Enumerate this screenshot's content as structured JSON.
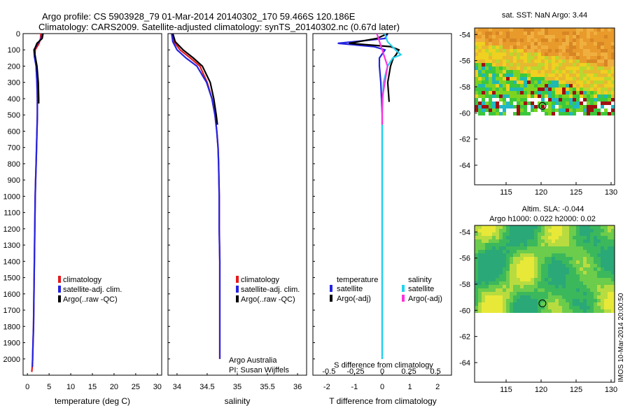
{
  "header": {
    "line1": "Argo profile: CS 5903928_79 01-Mar-2014 20140302_170 59.466S 120.186E",
    "line2": "Climatology: CARS2009. Satellite-adjusted climatology: synTS_20140302.nc (0.67d later)"
  },
  "colors": {
    "climatology": "#e31a1c",
    "satellite": "#2424e0",
    "argo": "#000000",
    "sal_satellite": "#22d3ee",
    "sal_argo": "#ff33dd"
  },
  "chart_data": [
    {
      "type": "line",
      "name": "temperature-panel",
      "xlabel": "temperature (deg C)",
      "ylabel": "",
      "xlim": [
        -1,
        31
      ],
      "ylim": [
        2100,
        0
      ],
      "xticks": [
        0,
        5,
        10,
        15,
        20,
        25,
        30
      ],
      "yticks": [
        0,
        100,
        200,
        300,
        400,
        500,
        600,
        700,
        800,
        900,
        1000,
        1100,
        1200,
        1300,
        1400,
        1500,
        1600,
        1700,
        1800,
        1900,
        2000
      ],
      "legend": [
        "climatology",
        "satellite-adj. clim.",
        "Argo(..raw -QC)"
      ],
      "series": [
        {
          "name": "climatology",
          "x": [
            3.1,
            3.0,
            2.7,
            1.8,
            1.7,
            2.0,
            2.2,
            2.3,
            2.3,
            2.2,
            2.1,
            2.0,
            1.9,
            1.8,
            1.7,
            1.6,
            1.5,
            1.4,
            1.3,
            1.2,
            1.1,
            1.0
          ],
          "y": [
            0,
            30,
            60,
            100,
            140,
            200,
            300,
            400,
            500,
            600,
            700,
            800,
            900,
            1000,
            1200,
            1400,
            1600,
            1800,
            1900,
            2000,
            2050,
            2080
          ]
        },
        {
          "name": "satellite-adj. clim.",
          "x": [
            3.4,
            3.2,
            2.4,
            1.5,
            1.6,
            2.0,
            2.2,
            2.3,
            2.3,
            2.2,
            2.1,
            2.0,
            1.9,
            1.8,
            1.7,
            1.6,
            1.5,
            1.4,
            1.3,
            1.2,
            1.15
          ],
          "y": [
            0,
            30,
            60,
            100,
            140,
            200,
            300,
            400,
            500,
            600,
            700,
            800,
            900,
            1000,
            1200,
            1400,
            1600,
            1800,
            1900,
            2000,
            2050
          ]
        },
        {
          "name": "Argo(..raw -QC)",
          "x": [
            3.6,
            3.4,
            2.2,
            1.6,
            1.8,
            2.2,
            2.5,
            2.6,
            2.6
          ],
          "y": [
            0,
            30,
            60,
            100,
            140,
            200,
            300,
            400,
            430
          ]
        }
      ]
    },
    {
      "type": "line",
      "name": "salinity-panel",
      "xlabel": "salinity",
      "ylabel": "",
      "xlim": [
        33.85,
        36.15
      ],
      "ylim": [
        2100,
        0
      ],
      "xticks": [
        34,
        34.5,
        35,
        35.5,
        36
      ],
      "legend": [
        "climatology",
        "satellite-adj. clim.",
        "Argo(..raw -QC)"
      ],
      "annotations": [
        "Argo Australia",
        "PI: Susan Wijffels"
      ],
      "series": [
        {
          "name": "climatology",
          "x": [
            33.92,
            33.95,
            34.05,
            34.22,
            34.38,
            34.5,
            34.58,
            34.63,
            34.66,
            34.68,
            34.69,
            34.7,
            34.7,
            34.71,
            34.71,
            34.71,
            34.71
          ],
          "y": [
            0,
            50,
            100,
            150,
            200,
            300,
            400,
            500,
            600,
            700,
            800,
            1000,
            1200,
            1400,
            1600,
            1800,
            2000
          ]
        },
        {
          "name": "satellite-adj. clim.",
          "x": [
            33.91,
            33.93,
            34.0,
            34.15,
            34.33,
            34.49,
            34.58,
            34.63,
            34.66,
            34.68,
            34.69,
            34.7,
            34.7,
            34.71,
            34.71,
            34.71,
            34.71
          ],
          "y": [
            0,
            50,
            100,
            150,
            200,
            300,
            400,
            500,
            600,
            700,
            800,
            1000,
            1200,
            1400,
            1600,
            1800,
            2000
          ]
        },
        {
          "name": "Argo(..raw -QC)",
          "x": [
            33.93,
            33.97,
            34.1,
            34.27,
            34.42,
            34.55,
            34.61,
            34.65,
            34.67
          ],
          "y": [
            0,
            50,
            100,
            150,
            200,
            300,
            400,
            500,
            560
          ]
        }
      ]
    },
    {
      "type": "line",
      "name": "difference-panel",
      "xlabel": "T difference from climatology",
      "ylabel": "",
      "secondary_xlabel": "S difference from climatology",
      "xlim": [
        -2.5,
        2.5
      ],
      "ylim": [
        2100,
        0
      ],
      "xticks": [
        -2,
        -1,
        0,
        1,
        2
      ],
      "secondary_xticks": [
        "-0.5",
        "-0.25",
        "0",
        "0.25",
        "0.5"
      ],
      "legend": [
        "temperature",
        "satellite",
        "Argo(-adj)",
        "salinity",
        "satellite",
        "Argo(-adj)"
      ],
      "series": [
        {
          "name": "temperature satellite",
          "x": [
            0.2,
            0.1,
            -1.6,
            -0.3,
            0.1,
            -0.1,
            -0.1,
            -0.05,
            0,
            0,
            0,
            0
          ],
          "y": [
            0,
            30,
            60,
            80,
            100,
            150,
            200,
            300,
            500,
            1000,
            1500,
            2000
          ]
        },
        {
          "name": "temperature Argo(-adj)",
          "x": [
            0.2,
            -0.2,
            -1.2,
            0.3,
            0.6,
            0.5,
            0.4,
            0.3,
            0.2,
            0.25
          ],
          "y": [
            0,
            30,
            60,
            80,
            100,
            130,
            150,
            200,
            300,
            420
          ]
        },
        {
          "name": "salinity satellite",
          "x": [
            0.1,
            0.2,
            0.5,
            0.7,
            0.4,
            0.2,
            0.05,
            0,
            0,
            0
          ],
          "y": [
            0,
            50,
            100,
            130,
            150,
            200,
            300,
            500,
            1000,
            2000
          ]
        },
        {
          "name": "salinity Argo(-adj)",
          "x": [
            -0.2,
            -0.1,
            0,
            0.1,
            0.2,
            0.1,
            0,
            0
          ],
          "y": [
            0,
            50,
            100,
            150,
            200,
            300,
            400,
            560
          ]
        }
      ]
    },
    {
      "type": "heatmap",
      "name": "sst-map",
      "title": "sat. SST: NaN Argo: 3.44",
      "xlim": [
        110.5,
        130.5
      ],
      "ylim": [
        -65.5,
        -53.5
      ],
      "xticks": [
        115,
        120,
        125,
        130
      ],
      "yticks": [
        -54,
        -56,
        -58,
        -60,
        -62,
        -64
      ],
      "marker": {
        "lon": 120.186,
        "lat": -59.466
      }
    },
    {
      "type": "heatmap",
      "name": "sla-map",
      "title": "Altim. SLA: -0.044",
      "subtitle": "Argo h1000: 0.022 h2000: 0.02",
      "xlim": [
        110.5,
        130.5
      ],
      "ylim": [
        -65.5,
        -53.5
      ],
      "xticks": [
        115,
        120,
        125,
        130
      ],
      "yticks": [
        -54,
        -56,
        -58,
        -60,
        -62,
        -64
      ],
      "marker": {
        "lon": 120.186,
        "lat": -59.466
      }
    }
  ],
  "footer": {
    "stamp": "IMOS 10-Mar-2014 20:00:50"
  }
}
